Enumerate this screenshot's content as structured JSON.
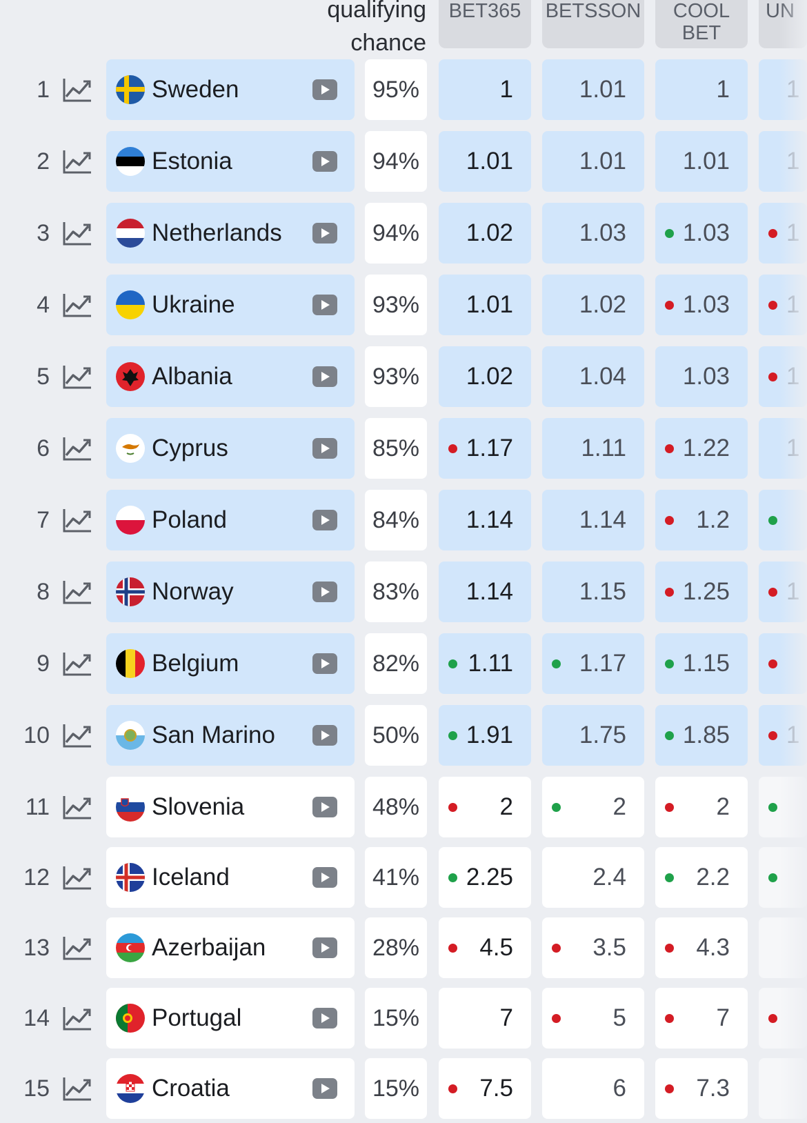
{
  "header": {
    "chance_line1": "qualifying",
    "chance_line2": "chance",
    "bookmakers": [
      {
        "line1": "BET365",
        "line2": ""
      },
      {
        "line1": "BETSSON",
        "line2": ""
      },
      {
        "line1": "COOL",
        "line2": "BET"
      },
      {
        "line1": "UN",
        "line2": ""
      }
    ]
  },
  "colors": {
    "highlight_row": "#d2e6fb",
    "dot_up": "#1fa14a",
    "dot_down": "#d41c24"
  },
  "rows": [
    {
      "rank": "1",
      "country": "Sweden",
      "flag": "sweden-flag",
      "chance": "95%",
      "qualifying": true,
      "odds": [
        {
          "value": "1",
          "dot": ""
        },
        {
          "value": "1.01",
          "dot": ""
        },
        {
          "value": "1",
          "dot": ""
        },
        {
          "value": "1",
          "dot": ""
        }
      ]
    },
    {
      "rank": "2",
      "country": "Estonia",
      "flag": "estonia-flag",
      "chance": "94%",
      "qualifying": true,
      "odds": [
        {
          "value": "1.01",
          "dot": ""
        },
        {
          "value": "1.01",
          "dot": ""
        },
        {
          "value": "1.01",
          "dot": ""
        },
        {
          "value": "1",
          "dot": ""
        }
      ]
    },
    {
      "rank": "3",
      "country": "Netherlands",
      "flag": "netherlands-flag",
      "chance": "94%",
      "qualifying": true,
      "odds": [
        {
          "value": "1.02",
          "dot": ""
        },
        {
          "value": "1.03",
          "dot": ""
        },
        {
          "value": "1.03",
          "dot": "green"
        },
        {
          "value": "1",
          "dot": "red"
        }
      ]
    },
    {
      "rank": "4",
      "country": "Ukraine",
      "flag": "ukraine-flag",
      "chance": "93%",
      "qualifying": true,
      "odds": [
        {
          "value": "1.01",
          "dot": ""
        },
        {
          "value": "1.02",
          "dot": ""
        },
        {
          "value": "1.03",
          "dot": "red"
        },
        {
          "value": "1",
          "dot": "red"
        }
      ]
    },
    {
      "rank": "5",
      "country": "Albania",
      "flag": "albania-flag",
      "chance": "93%",
      "qualifying": true,
      "odds": [
        {
          "value": "1.02",
          "dot": ""
        },
        {
          "value": "1.04",
          "dot": ""
        },
        {
          "value": "1.03",
          "dot": ""
        },
        {
          "value": "1",
          "dot": "red"
        }
      ]
    },
    {
      "rank": "6",
      "country": "Cyprus",
      "flag": "cyprus-flag",
      "chance": "85%",
      "qualifying": true,
      "odds": [
        {
          "value": "1.17",
          "dot": "red"
        },
        {
          "value": "1.11",
          "dot": ""
        },
        {
          "value": "1.22",
          "dot": "red"
        },
        {
          "value": "1",
          "dot": ""
        }
      ]
    },
    {
      "rank": "7",
      "country": "Poland",
      "flag": "poland-flag",
      "chance": "84%",
      "qualifying": true,
      "odds": [
        {
          "value": "1.14",
          "dot": ""
        },
        {
          "value": "1.14",
          "dot": ""
        },
        {
          "value": "1.2",
          "dot": "red"
        },
        {
          "value": "",
          "dot": "green"
        }
      ]
    },
    {
      "rank": "8",
      "country": "Norway",
      "flag": "norway-flag",
      "chance": "83%",
      "qualifying": true,
      "odds": [
        {
          "value": "1.14",
          "dot": ""
        },
        {
          "value": "1.15",
          "dot": ""
        },
        {
          "value": "1.25",
          "dot": "red"
        },
        {
          "value": "1",
          "dot": "red"
        }
      ]
    },
    {
      "rank": "9",
      "country": "Belgium",
      "flag": "belgium-flag",
      "chance": "82%",
      "qualifying": true,
      "odds": [
        {
          "value": "1.11",
          "dot": "green"
        },
        {
          "value": "1.17",
          "dot": "green"
        },
        {
          "value": "1.15",
          "dot": "green"
        },
        {
          "value": "",
          "dot": "red"
        }
      ]
    },
    {
      "rank": "10",
      "country": "San Marino",
      "flag": "san-marino-flag",
      "chance": "50%",
      "qualifying": true,
      "odds": [
        {
          "value": "1.91",
          "dot": "green"
        },
        {
          "value": "1.75",
          "dot": ""
        },
        {
          "value": "1.85",
          "dot": "green"
        },
        {
          "value": "1",
          "dot": "red"
        }
      ]
    },
    {
      "rank": "11",
      "country": "Slovenia",
      "flag": "slovenia-flag",
      "chance": "48%",
      "qualifying": false,
      "odds": [
        {
          "value": "2",
          "dot": "red"
        },
        {
          "value": "2",
          "dot": "green"
        },
        {
          "value": "2",
          "dot": "red"
        },
        {
          "value": "",
          "dot": "green"
        }
      ]
    },
    {
      "rank": "12",
      "country": "Iceland",
      "flag": "iceland-flag",
      "chance": "41%",
      "qualifying": false,
      "odds": [
        {
          "value": "2.25",
          "dot": "green"
        },
        {
          "value": "2.4",
          "dot": ""
        },
        {
          "value": "2.2",
          "dot": "green"
        },
        {
          "value": "",
          "dot": "green"
        }
      ]
    },
    {
      "rank": "13",
      "country": "Azerbaijan",
      "flag": "azerbaijan-flag",
      "chance": "28%",
      "qualifying": false,
      "odds": [
        {
          "value": "4.5",
          "dot": "red"
        },
        {
          "value": "3.5",
          "dot": "red"
        },
        {
          "value": "4.3",
          "dot": "red"
        },
        {
          "value": "",
          "dot": ""
        }
      ]
    },
    {
      "rank": "14",
      "country": "Portugal",
      "flag": "portugal-flag",
      "chance": "15%",
      "qualifying": false,
      "odds": [
        {
          "value": "7",
          "dot": ""
        },
        {
          "value": "5",
          "dot": "red"
        },
        {
          "value": "7",
          "dot": "red"
        },
        {
          "value": "",
          "dot": "red"
        }
      ]
    },
    {
      "rank": "15",
      "country": "Croatia",
      "flag": "croatia-flag",
      "chance": "15%",
      "qualifying": false,
      "odds": [
        {
          "value": "7.5",
          "dot": "red"
        },
        {
          "value": "6",
          "dot": ""
        },
        {
          "value": "7.3",
          "dot": "red"
        },
        {
          "value": "",
          "dot": ""
        }
      ]
    }
  ]
}
